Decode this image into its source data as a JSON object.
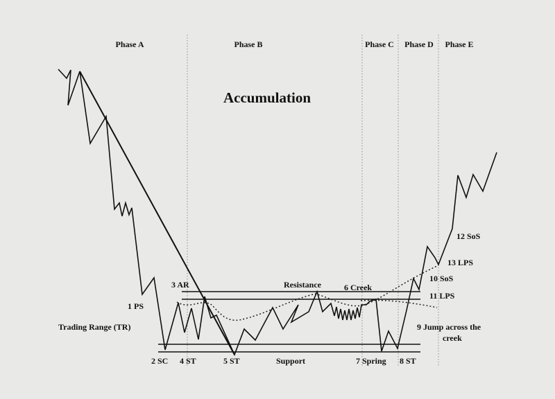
{
  "title": "Accumulation",
  "phases": [
    {
      "label": "Phase A"
    },
    {
      "label": "Phase B"
    },
    {
      "label": "Phase C"
    },
    {
      "label": "Phase D"
    },
    {
      "label": "Phase E"
    }
  ],
  "labels": {
    "ps": "1 PS",
    "tr": "Trading Range (TR)",
    "sc": "2 SC",
    "ar": "3 AR",
    "st4": "4 ST",
    "st5": "5 ST",
    "resistance": "Resistance",
    "support": "Support",
    "creek": "6 Creek",
    "spring": "7 Spring",
    "st8": "8 ST",
    "jump1": "9 Jump across the",
    "jump2": "creek",
    "sos10": "10 SoS",
    "lps11": "11 LPS",
    "sos12": "12 SoS",
    "lps13": "13 LPS"
  },
  "colors": {
    "ink": "#111111",
    "paper": "#e9e9e7"
  }
}
